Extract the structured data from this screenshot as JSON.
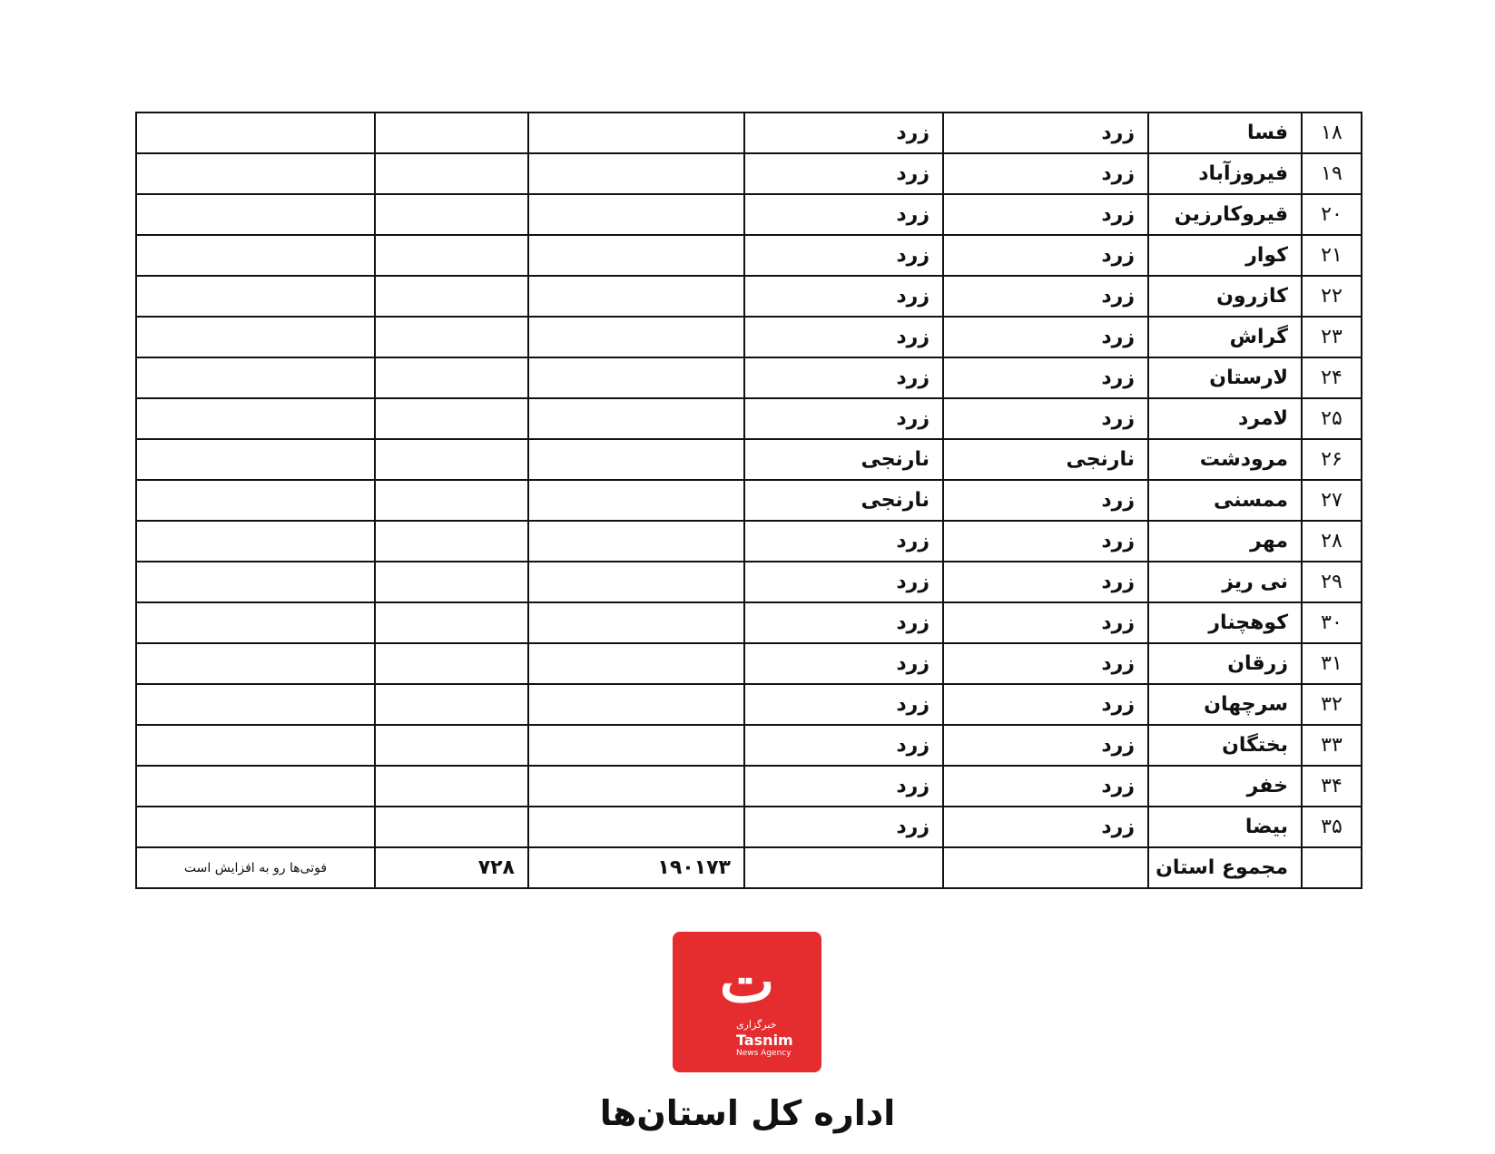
{
  "table": {
    "rows": [
      {
        "number": "۱۸",
        "name": "فسا",
        "status1": "زرد",
        "status2": "زرد"
      },
      {
        "number": "۱۹",
        "name": "فیروزآباد",
        "status1": "زرد",
        "status2": "زرد"
      },
      {
        "number": "۲۰",
        "name": "قیروکارزین",
        "status1": "زرد",
        "status2": "زرد"
      },
      {
        "number": "۲۱",
        "name": "کوار",
        "status1": "زرد",
        "status2": "زرد"
      },
      {
        "number": "۲۲",
        "name": "کازرون",
        "status1": "زرد",
        "status2": "زرد"
      },
      {
        "number": "۲۳",
        "name": "گراش",
        "status1": "زرد",
        "status2": "زرد"
      },
      {
        "number": "۲۴",
        "name": "لارستان",
        "status1": "زرد",
        "status2": "زرد"
      },
      {
        "number": "۲۵",
        "name": "لامرد",
        "status1": "زرد",
        "status2": "زرد"
      },
      {
        "number": "۲۶",
        "name": "مرودشت",
        "status1": "نارنجی",
        "status2": "نارنجی"
      },
      {
        "number": "۲۷",
        "name": "ممسنی",
        "status1": "زرد",
        "status2": "نارنجی"
      },
      {
        "number": "۲۸",
        "name": "مهر",
        "status1": "زرد",
        "status2": "زرد"
      },
      {
        "number": "۲۹",
        "name": "نی ریز",
        "status1": "زرد",
        "status2": "زرد"
      },
      {
        "number": "۳۰",
        "name": "کوهچنار",
        "status1": "زرد",
        "status2": "زرد"
      },
      {
        "number": "۳۱",
        "name": "زرقان",
        "status1": "زرد",
        "status2": "زرد"
      },
      {
        "number": "۳۲",
        "name": "سرچهان",
        "status1": "زرد",
        "status2": "زرد"
      },
      {
        "number": "۳۳",
        "name": "بختگان",
        "status1": "زرد",
        "status2": "زرد"
      },
      {
        "number": "۳۴",
        "name": "خفر",
        "status1": "زرد",
        "status2": "زرد"
      },
      {
        "number": "۳۵",
        "name": "بیضا",
        "status1": "زرد",
        "status2": "زرد"
      }
    ],
    "total": {
      "label": "مجموع استان",
      "value1": "۱۹۰۱۷۳",
      "value2": "۷۲۸",
      "note": "فوتی‌ها رو به افزایش است"
    }
  },
  "logo": {
    "persian": "خبرگزاری",
    "english": "Tasnim",
    "subtitle": "News Agency"
  },
  "footer": {
    "title": "اداره کل استان‌ها"
  }
}
